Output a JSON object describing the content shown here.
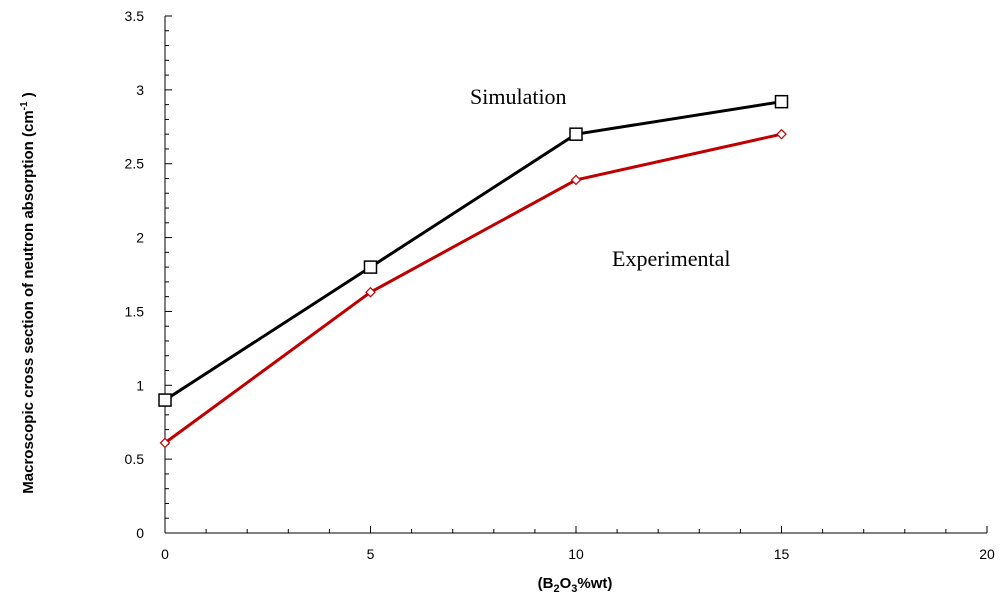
{
  "chart_data": {
    "type": "line",
    "title": "",
    "xlabel": "(B2O3%wt)",
    "xlabel_parts": {
      "open": "(B",
      "sub1": "2",
      "mid": "O",
      "sub2": "3",
      "close": "%wt)"
    },
    "ylabel": "Macroscopic cross section of neutron absorption (cm-1)",
    "ylabel_parts": {
      "main": "Macroscopic cross section of neutron absorption (cm",
      "sup": "-1",
      "close": " )"
    },
    "xlim": [
      0,
      20
    ],
    "ylim": [
      0,
      3.5
    ],
    "xticks": [
      0,
      5,
      10,
      15,
      20
    ],
    "yticks": [
      0,
      0.5,
      1,
      1.5,
      2,
      2.5,
      3,
      3.5
    ],
    "ytick_labels": [
      "0",
      "0.5",
      "1",
      "1.5",
      "2",
      "2.5",
      "3",
      "3.5"
    ],
    "grid": false,
    "legend": "none",
    "series": [
      {
        "name": "Simulation",
        "color": "#000000",
        "marker": "square",
        "x": [
          0,
          5,
          10,
          15
        ],
        "y": [
          0.9,
          1.8,
          2.7,
          2.92
        ]
      },
      {
        "name": "Experimental",
        "color": "#c00000",
        "marker": "diamond",
        "x": [
          0,
          5,
          10,
          15
        ],
        "y": [
          0.61,
          1.63,
          2.39,
          2.7
        ]
      }
    ]
  }
}
